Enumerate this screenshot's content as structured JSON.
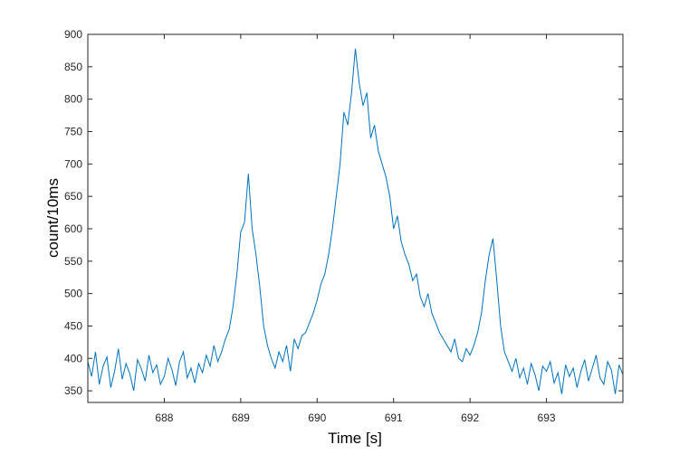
{
  "chart_data": {
    "type": "line",
    "xlabel": "Time [s]",
    "ylabel": "count/10ms",
    "xlim": [
      687.0,
      694.0
    ],
    "ylim": [
      332,
      900
    ],
    "xticks": [
      688,
      689,
      690,
      691,
      692,
      693
    ],
    "yticks": [
      350,
      400,
      450,
      500,
      550,
      600,
      650,
      700,
      750,
      800,
      850,
      900
    ],
    "box": true,
    "x": [
      687.0,
      687.05,
      687.1,
      687.15,
      687.2,
      687.25,
      687.3,
      687.35,
      687.4,
      687.45,
      687.5,
      687.55,
      687.6,
      687.65,
      687.7,
      687.75,
      687.8,
      687.85,
      687.9,
      687.95,
      688.0,
      688.05,
      688.1,
      688.15,
      688.2,
      688.25,
      688.3,
      688.35,
      688.4,
      688.45,
      688.5,
      688.55,
      688.6,
      688.65,
      688.7,
      688.75,
      688.8,
      688.85,
      688.9,
      688.95,
      689.0,
      689.05,
      689.1,
      689.15,
      689.2,
      689.25,
      689.3,
      689.35,
      689.4,
      689.45,
      689.5,
      689.55,
      689.6,
      689.65,
      689.7,
      689.75,
      689.8,
      689.85,
      689.9,
      689.95,
      690.0,
      690.05,
      690.1,
      690.15,
      690.2,
      690.25,
      690.3,
      690.35,
      690.4,
      690.45,
      690.5,
      690.55,
      690.6,
      690.65,
      690.7,
      690.75,
      690.8,
      690.85,
      690.9,
      690.95,
      691.0,
      691.05,
      691.1,
      691.15,
      691.2,
      691.25,
      691.3,
      691.35,
      691.4,
      691.45,
      691.5,
      691.55,
      691.6,
      691.65,
      691.7,
      691.75,
      691.8,
      691.85,
      691.9,
      691.95,
      692.0,
      692.05,
      692.1,
      692.15,
      692.2,
      692.25,
      692.3,
      692.35,
      692.4,
      692.45,
      692.5,
      692.55,
      692.6,
      692.65,
      692.7,
      692.75,
      692.8,
      692.85,
      692.9,
      692.95,
      693.0,
      693.05,
      693.1,
      693.15,
      693.2,
      693.25,
      693.3,
      693.35,
      693.4,
      693.45,
      693.5,
      693.55,
      693.6,
      693.65,
      693.7,
      693.75,
      693.8,
      693.85,
      693.9,
      693.95,
      694.0
    ],
    "series": [
      {
        "color": "#0072bd",
        "values": [
          395,
          372,
          410,
          360,
          388,
          402,
          355,
          380,
          415,
          368,
          392,
          376,
          350,
          398,
          384,
          365,
          405,
          378,
          390,
          360,
          372,
          400,
          383,
          358,
          395,
          410,
          370,
          385,
          362,
          392,
          378,
          405,
          388,
          420,
          395,
          410,
          430,
          445,
          480,
          530,
          595,
          610,
          685,
          600,
          560,
          510,
          450,
          420,
          400,
          385,
          410,
          395,
          420,
          380,
          430,
          415,
          435,
          440,
          455,
          470,
          490,
          515,
          530,
          560,
          600,
          650,
          700,
          780,
          760,
          810,
          878,
          825,
          790,
          810,
          740,
          760,
          720,
          700,
          680,
          650,
          600,
          620,
          580,
          560,
          545,
          520,
          530,
          495,
          480,
          500,
          470,
          455,
          440,
          430,
          420,
          410,
          430,
          400,
          395,
          415,
          405,
          420,
          440,
          470,
          520,
          560,
          585,
          520,
          450,
          410,
          395,
          380,
          400,
          370,
          385,
          360,
          392,
          375,
          350,
          388,
          380,
          395,
          362,
          378,
          345,
          390,
          372,
          385,
          355,
          380,
          398,
          365,
          385,
          405,
          370,
          360,
          395,
          382,
          345,
          390,
          375
        ]
      }
    ]
  }
}
